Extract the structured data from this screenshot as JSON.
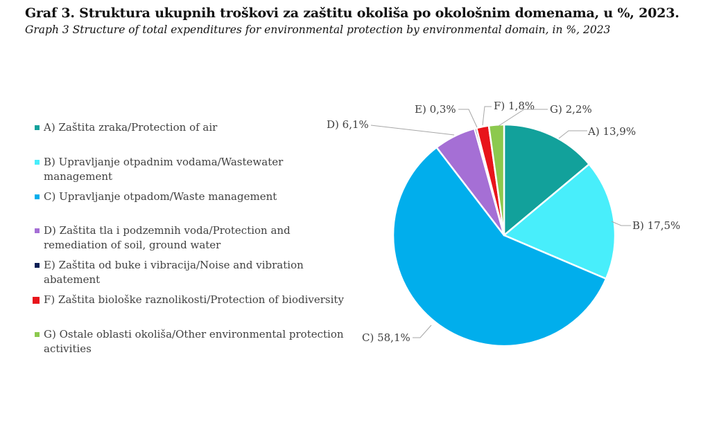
{
  "chart_data": {
    "type": "pie",
    "title": "Graf 3. Struktura ukupnih troškovi za zaštitu okoliša po okološnim domenama, u %, 2023.",
    "subtitle": "Graph 3 Structure of total expenditures for environmental protection by environmental domain, in %, 2023",
    "unit": "%",
    "legend_position": "left",
    "slices": [
      {
        "key": "A",
        "label": "A) 13,9%",
        "value": 13.9,
        "color": "#12a19b",
        "legend": "A) Zaštita zraka/Protection of air"
      },
      {
        "key": "B",
        "label": "B) 17,5%",
        "value": 17.5,
        "color": "#48eefb",
        "legend": "B) Upravljanje otpadnim vodama/Wastewater management"
      },
      {
        "key": "C",
        "label": "C) 58,1%",
        "value": 58.1,
        "color": "#01aeec",
        "legend": "C) Upravljanje otpadom/Waste management"
      },
      {
        "key": "D",
        "label": "D) 6,1%",
        "value": 6.1,
        "color": "#a56fd5",
        "legend": "D) Zaštita tla i podzemnih voda/Protection and remediation of soil, ground water"
      },
      {
        "key": "E",
        "label": "E) 0,3%",
        "value": 0.3,
        "color": "#0b1f55",
        "legend": "E) Zaštita od buke i vibracija/Noise and vibration abatement"
      },
      {
        "key": "F",
        "label": "F) 1,8%",
        "value": 1.8,
        "color": "#e8141b",
        "legend": "F) Zaštita biološke raznolikosti/Protection of biodiversity"
      },
      {
        "key": "G",
        "label": "G) 2,2%",
        "value": 2.2,
        "color": "#8cc94e",
        "legend": "G) Ostale oblasti okoliša/Other environmental protection activities"
      }
    ]
  }
}
